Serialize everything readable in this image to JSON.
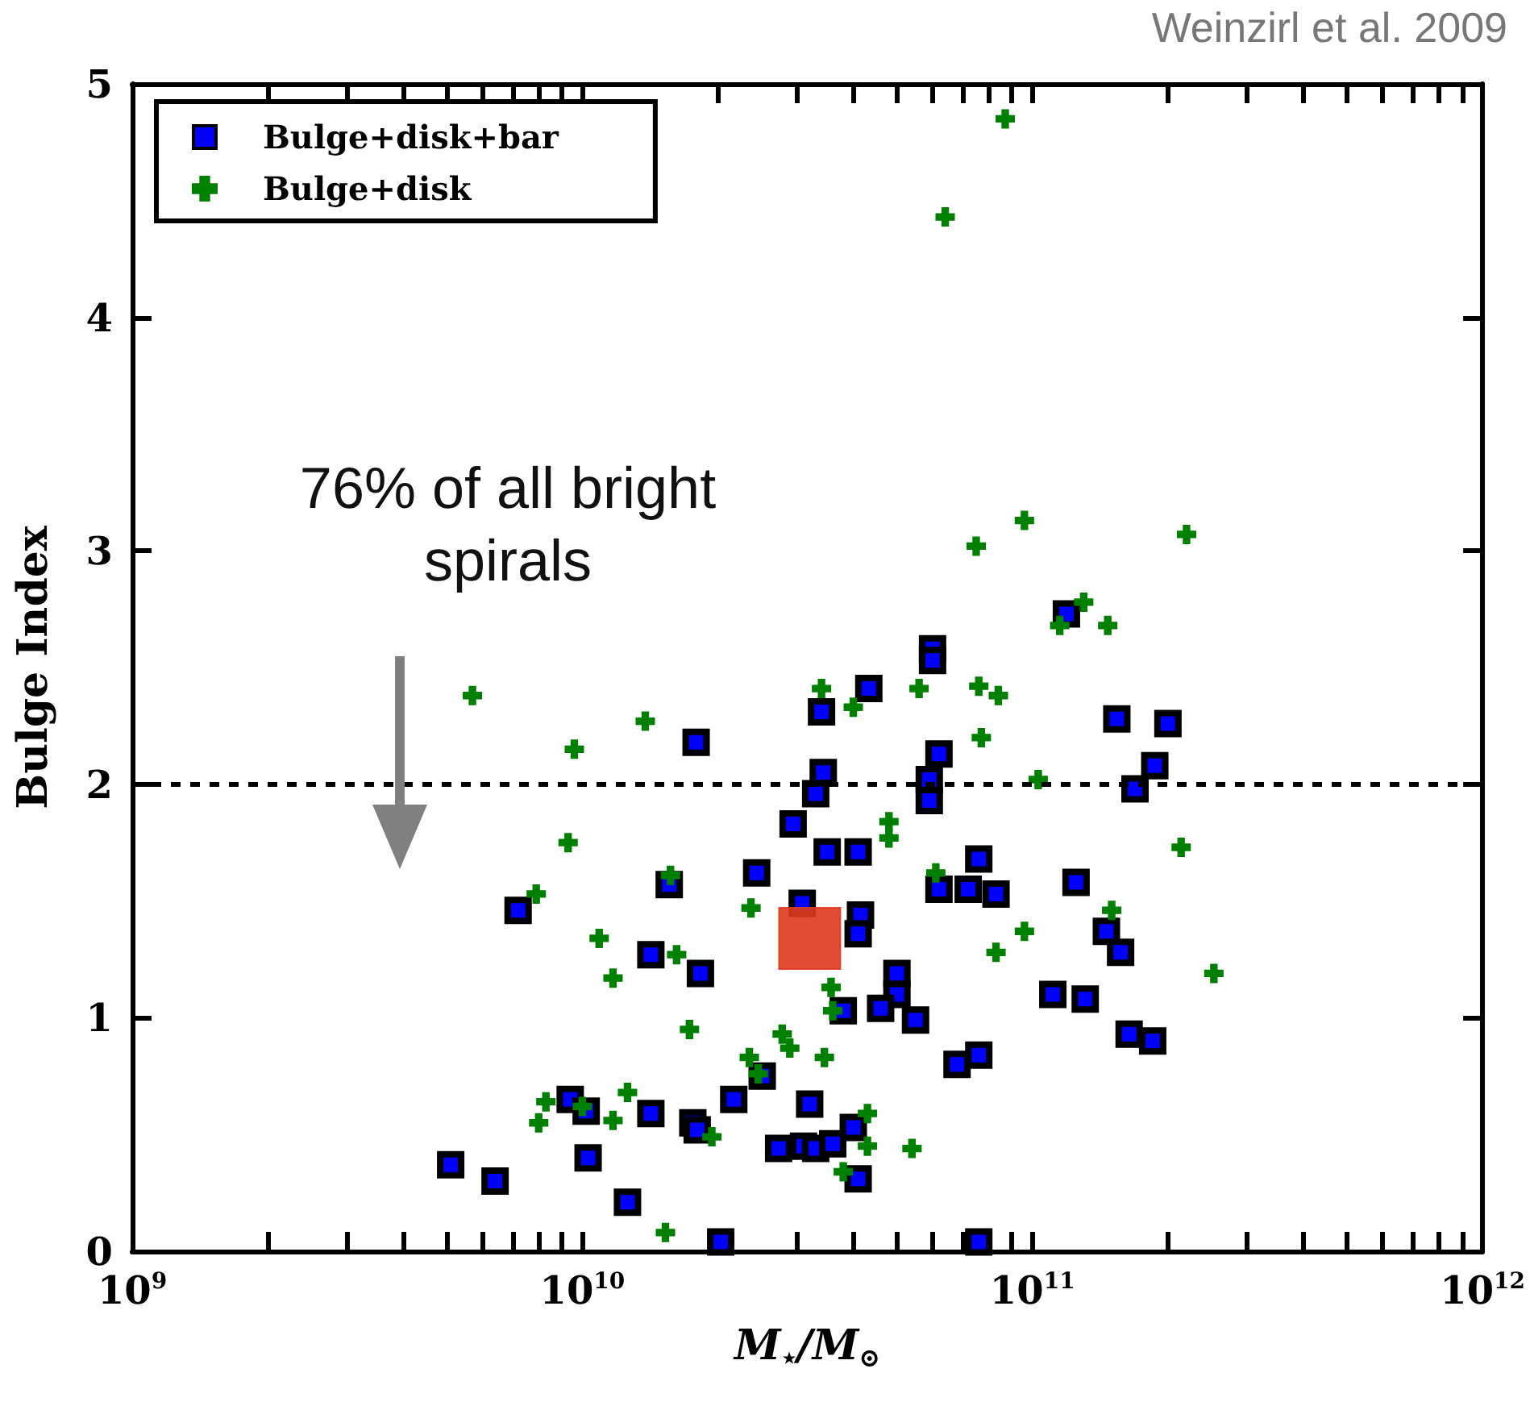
{
  "chart_data": {
    "type": "scatter",
    "xlabel": "M$_{⋆}$/M$_{⊙}$",
    "ylabel": "Bulge Index",
    "annotations": [
      "Weinzirl et al. 2009",
      "76% of all bright spirals"
    ],
    "log": "x",
    "xlim": [
      1000000000.0,
      1000000000000.0
    ],
    "ylim": [
      0,
      5
    ],
    "xticks": [
      {
        "value": 1000000000.0,
        "label": "10$^{9}$"
      },
      {
        "value": 2000000000.0,
        "label": null
      },
      {
        "value": 3000000000.0,
        "label": null
      },
      {
        "value": 4000000000.0,
        "label": null
      },
      {
        "value": 5000000000.0,
        "label": null
      },
      {
        "value": 6000000000.0,
        "label": null
      },
      {
        "value": 7000000000.0,
        "label": null
      },
      {
        "value": 8000000000.0,
        "label": null
      },
      {
        "value": 9000000000.0,
        "label": null
      },
      {
        "value": 10000000000.0,
        "label": "10$^{10}$"
      },
      {
        "value": 20000000000.0,
        "label": null
      },
      {
        "value": 30000000000.0,
        "label": null
      },
      {
        "value": 40000000000.0,
        "label": null
      },
      {
        "value": 50000000000.0,
        "label": null
      },
      {
        "value": 60000000000.0,
        "label": null
      },
      {
        "value": 70000000000.0,
        "label": null
      },
      {
        "value": 80000000000.0,
        "label": null
      },
      {
        "value": 90000000000.0,
        "label": null
      },
      {
        "value": 100000000000.0,
        "label": "10$^{11}$"
      },
      {
        "value": 200000000000.0,
        "label": null
      },
      {
        "value": 300000000000.0,
        "label": null
      },
      {
        "value": 400000000000.0,
        "label": null
      },
      {
        "value": 500000000000.0,
        "label": null
      },
      {
        "value": 600000000000.0,
        "label": null
      },
      {
        "value": 700000000000.0,
        "label": null
      },
      {
        "value": 800000000000.0,
        "label": null
      },
      {
        "value": 900000000000.0,
        "label": null
      },
      {
        "value": 1000000000000.0,
        "label": "10$^{12}$"
      }
    ],
    "yticks": [
      0,
      1,
      2,
      3,
      4,
      5
    ],
    "legend": "top left",
    "grid": false,
    "ref_lines": [
      {
        "axis": "y",
        "value": 2,
        "color": "#000000",
        "line_style": "dashed"
      }
    ],
    "series": [
      {
        "name": "Bulge+disk+bar",
        "color": "#0000ff",
        "marker": "square",
        "x": [
          5100000000.0,
          6400000000.0,
          7200000000.0,
          9400000000.0,
          10300000000.0,
          10200000000.0,
          12600000000.0,
          14200000000.0,
          15600000000.0,
          14200000000.0,
          17600000000.0,
          18000000000.0,
          18300000000.0,
          17900000000.0,
          21700000000.0,
          20300000000.0,
          24400000000.0,
          27300000000.0,
          25100000000.0,
          60000000000.0,
          60000000000.0,
          119000000000.0,
          43300000000.0,
          34000000000.0,
          154000000000.0,
          200000000000.0,
          62000000000.0,
          34300000000.0,
          33000000000.0,
          59000000000.0,
          59000000000.0,
          187000000000.0,
          169000000000.0,
          29400000000.0,
          35000000000.0,
          41000000000.0,
          76000000000.0,
          125000000000.0,
          62000000000.0,
          72000000000.0,
          83000000000.0,
          30800000000.0,
          41500000000.0,
          41000000000.0,
          146000000000.0,
          157000000000.0,
          50000000000.0,
          50000000000.0,
          38000000000.0,
          46000000000.0,
          55000000000.0,
          111000000000.0,
          131000000000.0,
          164000000000.0,
          185000000000.0,
          76000000000.0,
          68000000000.0,
          32000000000.0,
          40000000000.0,
          31000000000.0,
          33000000000.0,
          36000000000.0,
          41000000000.0,
          76000000000.0
        ],
        "values": [
          0.37,
          0.3,
          1.46,
          0.65,
          0.4,
          0.6,
          0.21,
          1.27,
          1.57,
          0.59,
          0.55,
          0.52,
          1.19,
          2.18,
          0.65,
          0.04,
          1.62,
          0.44,
          0.75,
          2.58,
          2.53,
          2.73,
          2.41,
          2.31,
          2.28,
          2.26,
          2.13,
          2.05,
          1.96,
          2.02,
          1.93,
          2.08,
          1.98,
          1.83,
          1.71,
          1.71,
          1.68,
          1.58,
          1.55,
          1.55,
          1.53,
          1.49,
          1.44,
          1.36,
          1.37,
          1.28,
          1.19,
          1.1,
          1.03,
          1.04,
          0.99,
          1.1,
          1.08,
          0.93,
          0.9,
          0.84,
          0.8,
          0.63,
          0.53,
          0.45,
          0.44,
          0.46,
          0.31,
          0.04
        ]
      },
      {
        "name": "Bulge+disk",
        "color": "#008000",
        "marker": "cross",
        "x": [
          5700000000.0,
          13800000000.0,
          9600000000.0,
          9300000000.0,
          7900000000.0,
          15700000000.0,
          23700000000.0,
          10900000000.0,
          16200000000.0,
          11700000000.0,
          17300000000.0,
          27800000000.0,
          23500000000.0,
          24600000000.0,
          8300000000.0,
          8000000000.0,
          10000000000.0,
          12600000000.0,
          11700000000.0,
          19400000000.0,
          15300000000.0,
          96000000000.0,
          75000000000.0,
          220000000000.0,
          130000000000.0,
          115000000000.0,
          147000000000.0,
          34000000000.0,
          40000000000.0,
          56000000000.0,
          76000000000.0,
          84000000000.0,
          77000000000.0,
          103000000000.0,
          48000000000.0,
          48000000000.0,
          214000000000.0,
          61000000000.0,
          150000000000.0,
          96000000000.0,
          83000000000.0,
          253000000000.0,
          35700000000.0,
          36000000000.0,
          28900000000.0,
          34500000000.0,
          43000000000.0,
          43000000000.0,
          54000000000.0,
          38000000000.0,
          64000000000.0,
          87000000000.0
        ],
        "values": [
          2.38,
          2.27,
          2.15,
          1.75,
          1.53,
          1.61,
          1.47,
          1.34,
          1.27,
          1.17,
          0.95,
          0.93,
          0.83,
          0.76,
          0.64,
          0.55,
          0.62,
          0.68,
          0.56,
          0.49,
          0.08,
          3.13,
          3.02,
          3.07,
          2.78,
          2.68,
          2.68,
          2.41,
          2.33,
          2.41,
          2.42,
          2.38,
          2.2,
          2.02,
          1.84,
          1.77,
          1.73,
          1.62,
          1.46,
          1.37,
          1.28,
          1.19,
          1.13,
          1.03,
          0.87,
          0.83,
          0.59,
          0.45,
          0.44,
          0.34,
          4.43,
          4.85
        ]
      },
      {
        "color": "#e03a1e",
        "marker": "square",
        "x": [
          32000000000.0
        ],
        "values": [
          1.34
        ]
      }
    ]
  }
}
